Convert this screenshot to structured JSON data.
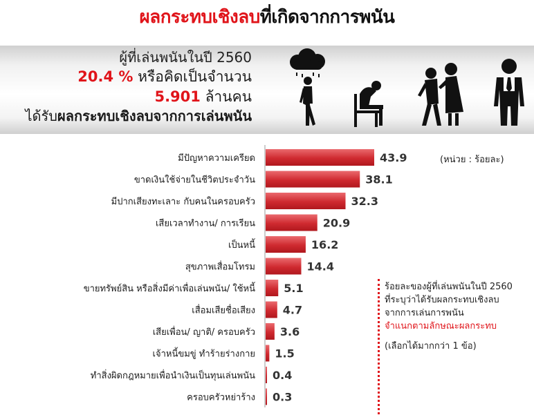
{
  "title": {
    "part1": "ผลกระทบเชิงลบ",
    "part2": "ที่เกิดจากการพนัน"
  },
  "intro": {
    "line1": "ผู้ที่เล่นพนันในปี 2560",
    "percent": "20.4 %",
    "line2_text": " หรือคิดเป็นจำนวน",
    "count": "5.901",
    "count_unit": " ล้านคน",
    "line4_prefix": "ได้รับ",
    "line4_bold": "ผลกระทบเชิงลบจากการเล่นพนัน"
  },
  "icons": [
    "rain-cloud-walking-person-icon",
    "sitting-sad-person-icon",
    "arguing-couple-icon",
    "businessman-icon"
  ],
  "unit_label": "(หน่วย : ร้อยละ)",
  "note": {
    "line1": "ร้อยละของผู้ที่เล่นพนันในปี 2560",
    "line2": "ที่ระบุว่าได้รับผลกระทบเชิงลบ",
    "line3": "จากการเล่นการพนัน",
    "line4": "จำแนกตามลักษณะผลกระทบ",
    "line5": "(เลือกได้มากกว่า 1 ข้อ)"
  },
  "colors": {
    "accent": "#e0141a",
    "bar": "#cf2a30",
    "bar_light": "#ea6a6e"
  },
  "chart_data": {
    "type": "bar",
    "orientation": "horizontal",
    "categories": [
      "มีปัญหาความเครียด",
      "ขาดเงินใช้จ่ายในชีวิตประจำวัน",
      "มีปากเสียงทะเลาะ กับคนในครอบครัว",
      "เสียเวลาทำงาน/ การเรียน",
      "เป็นหนี้",
      "สุขภาพเสื่อมโทรม",
      "ขายทรัพย์สิน หรือสิ่งมีค่าเพื่อเล่นพนัน/ ใช้หนี้",
      "เสื่อมเสียชื่อเสียง",
      "เสียเพื่อน/ ญาติ/ ครอบครัว",
      "เจ้าหนี้ขมขู่ ทำร้ายร่างกาย",
      "ทำสิ่งผิดกฎหมายเพื่อนำเงินเป็นทุนเล่นพนัน",
      "ครอบครัวหย่าร้าง"
    ],
    "values": [
      43.9,
      38.1,
      32.3,
      20.9,
      16.2,
      14.4,
      5.1,
      4.7,
      3.6,
      1.5,
      0.4,
      0.3
    ],
    "value_labels": [
      "43.9",
      "38.1",
      "32.3",
      "20.9",
      "16.2",
      "14.4",
      "5.1",
      "4.7",
      "3.6",
      "1.5",
      "0.4",
      "0.3"
    ],
    "xlim": [
      0,
      50
    ],
    "grid": false,
    "legend": "none"
  }
}
